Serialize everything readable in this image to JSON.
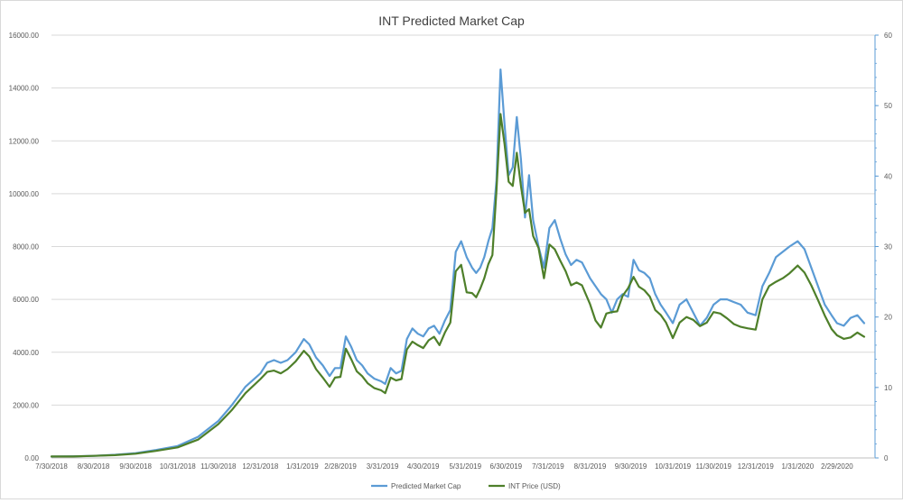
{
  "chart_data": {
    "type": "line",
    "title": "INT Predicted Market Cap",
    "x_tick_labels": [
      "7/30/2018",
      "8/30/2018",
      "9/30/2018",
      "10/31/2018",
      "11/30/2018",
      "12/31/2018",
      "1/31/2019",
      "2/28/2019",
      "3/31/2019",
      "4/30/2019",
      "5/31/2019",
      "6/30/2019",
      "7/31/2019",
      "8/31/2019",
      "9/30/2019",
      "10/31/2019",
      "11/30/2019",
      "12/31/2019",
      "1/31/2020",
      "2/29/2020"
    ],
    "y_left": {
      "min": 0,
      "max": 16000,
      "ticks": [
        "0.00",
        "2000.00",
        "4000.00",
        "6000.00",
        "8000.00",
        "10000.00",
        "12000.00",
        "14000.00",
        "16000.00"
      ]
    },
    "y_right": {
      "min": 0,
      "max": 60,
      "ticks": [
        "0",
        "10",
        "20",
        "30",
        "40",
        "50",
        "60"
      ]
    },
    "legend_position": "bottom",
    "grid": true,
    "series": [
      {
        "name": "Predicted Market Cap",
        "axis": "left",
        "color": "#5b9bd5",
        "x": [
          "2018-07-30",
          "2018-08-15",
          "2018-08-30",
          "2018-09-15",
          "2018-09-30",
          "2018-10-15",
          "2018-10-31",
          "2018-11-15",
          "2018-11-30",
          "2018-12-10",
          "2018-12-20",
          "2018-12-31",
          "2019-01-05",
          "2019-01-10",
          "2019-01-15",
          "2019-01-20",
          "2019-01-26",
          "2019-02-01",
          "2019-02-05",
          "2019-02-10",
          "2019-02-15",
          "2019-02-20",
          "2019-02-24",
          "2019-02-28",
          "2019-03-04",
          "2019-03-08",
          "2019-03-12",
          "2019-03-16",
          "2019-03-20",
          "2019-03-25",
          "2019-03-30",
          "2019-04-02",
          "2019-04-06",
          "2019-04-10",
          "2019-04-14",
          "2019-04-18",
          "2019-04-22",
          "2019-04-26",
          "2019-04-30",
          "2019-05-04",
          "2019-05-08",
          "2019-05-12",
          "2019-05-16",
          "2019-05-20",
          "2019-05-24",
          "2019-05-28",
          "2019-06-01",
          "2019-06-05",
          "2019-06-08",
          "2019-06-11",
          "2019-06-14",
          "2019-06-17",
          "2019-06-20",
          "2019-06-23",
          "2019-06-26",
          "2019-06-29",
          "2019-07-02",
          "2019-07-05",
          "2019-07-08",
          "2019-07-11",
          "2019-07-14",
          "2019-07-17",
          "2019-07-20",
          "2019-07-24",
          "2019-07-28",
          "2019-08-01",
          "2019-08-05",
          "2019-08-09",
          "2019-08-13",
          "2019-08-17",
          "2019-08-21",
          "2019-08-25",
          "2019-08-31",
          "2019-09-04",
          "2019-09-08",
          "2019-09-12",
          "2019-09-16",
          "2019-09-20",
          "2019-09-24",
          "2019-09-28",
          "2019-10-02",
          "2019-10-06",
          "2019-10-10",
          "2019-10-14",
          "2019-10-18",
          "2019-10-22",
          "2019-10-26",
          "2019-10-31",
          "2019-11-05",
          "2019-11-10",
          "2019-11-15",
          "2019-11-20",
          "2019-11-25",
          "2019-11-30",
          "2019-12-05",
          "2019-12-10",
          "2019-12-15",
          "2019-12-20",
          "2019-12-25",
          "2019-12-31",
          "2020-01-05",
          "2020-01-10",
          "2020-01-15",
          "2020-01-20",
          "2020-01-25",
          "2020-01-31",
          "2020-02-05",
          "2020-02-10",
          "2020-02-15",
          "2020-02-20",
          "2020-02-25",
          "2020-02-29",
          "2020-03-05",
          "2020-03-10",
          "2020-03-15",
          "2020-03-20"
        ],
        "y": [
          50,
          60,
          80,
          120,
          180,
          300,
          450,
          800,
          1400,
          2000,
          2700,
          3200,
          3600,
          3700,
          3600,
          3700,
          4000,
          4500,
          4300,
          3800,
          3500,
          3100,
          3400,
          3400,
          4600,
          4200,
          3700,
          3500,
          3200,
          3000,
          2900,
          2800,
          3400,
          3200,
          3300,
          4500,
          4900,
          4700,
          4600,
          4900,
          5000,
          4700,
          5200,
          5600,
          7800,
          8200,
          7600,
          7200,
          7000,
          7200,
          7600,
          8200,
          8700,
          10500,
          14700,
          12600,
          10700,
          11000,
          12900,
          11300,
          9100,
          10700,
          9000,
          8000,
          7200,
          8700,
          9000,
          8300,
          7700,
          7300,
          7500,
          7400,
          6800,
          6500,
          6200,
          6000,
          5500,
          6000,
          6200,
          6100,
          7500,
          7100,
          7000,
          6800,
          6200,
          5800,
          5500,
          5100,
          5800,
          6000,
          5500,
          5000,
          5300,
          5800,
          6000,
          6000,
          5900,
          5800,
          5500,
          5400,
          6500,
          7000,
          7600,
          7800,
          8000,
          8200,
          7900,
          7200,
          6500,
          5800,
          5400,
          5100,
          5000,
          5300,
          5400,
          5100
        ]
      },
      {
        "name": "INT Price (USD)",
        "axis": "right",
        "color": "#4e7f2a",
        "x": [
          "2018-07-30",
          "2018-08-15",
          "2018-08-30",
          "2018-09-15",
          "2018-09-30",
          "2018-10-15",
          "2018-10-31",
          "2018-11-15",
          "2018-11-30",
          "2018-12-10",
          "2018-12-20",
          "2018-12-31",
          "2019-01-05",
          "2019-01-10",
          "2019-01-15",
          "2019-01-20",
          "2019-01-26",
          "2019-02-01",
          "2019-02-05",
          "2019-02-10",
          "2019-02-15",
          "2019-02-20",
          "2019-02-24",
          "2019-02-28",
          "2019-03-04",
          "2019-03-08",
          "2019-03-12",
          "2019-03-16",
          "2019-03-20",
          "2019-03-25",
          "2019-03-30",
          "2019-04-02",
          "2019-04-06",
          "2019-04-10",
          "2019-04-14",
          "2019-04-18",
          "2019-04-22",
          "2019-04-26",
          "2019-04-30",
          "2019-05-04",
          "2019-05-08",
          "2019-05-12",
          "2019-05-16",
          "2019-05-20",
          "2019-05-24",
          "2019-05-28",
          "2019-06-01",
          "2019-06-05",
          "2019-06-08",
          "2019-06-11",
          "2019-06-14",
          "2019-06-17",
          "2019-06-20",
          "2019-06-23",
          "2019-06-26",
          "2019-06-29",
          "2019-07-02",
          "2019-07-05",
          "2019-07-08",
          "2019-07-11",
          "2019-07-14",
          "2019-07-17",
          "2019-07-20",
          "2019-07-24",
          "2019-07-28",
          "2019-08-01",
          "2019-08-05",
          "2019-08-09",
          "2019-08-13",
          "2019-08-17",
          "2019-08-21",
          "2019-08-25",
          "2019-08-31",
          "2019-09-04",
          "2019-09-08",
          "2019-09-12",
          "2019-09-16",
          "2019-09-20",
          "2019-09-24",
          "2019-09-28",
          "2019-10-02",
          "2019-10-06",
          "2019-10-10",
          "2019-10-14",
          "2019-10-18",
          "2019-10-22",
          "2019-10-26",
          "2019-10-31",
          "2019-11-05",
          "2019-11-10",
          "2019-11-15",
          "2019-11-20",
          "2019-11-25",
          "2019-11-30",
          "2019-12-05",
          "2019-12-10",
          "2019-12-15",
          "2019-12-20",
          "2019-12-25",
          "2019-12-31",
          "2020-01-05",
          "2020-01-10",
          "2020-01-15",
          "2020-01-20",
          "2020-01-25",
          "2020-01-31",
          "2020-02-05",
          "2020-02-10",
          "2020-02-15",
          "2020-02-20",
          "2020-02-25",
          "2020-02-29",
          "2020-03-05",
          "2020-03-10",
          "2020-03-15",
          "2020-03-20"
        ],
        "y": [
          0.2,
          0.2,
          0.3,
          0.4,
          0.6,
          1.0,
          1.5,
          2.6,
          4.8,
          6.8,
          9.2,
          11.2,
          12.2,
          12.4,
          12.0,
          12.6,
          13.7,
          15.2,
          14.4,
          12.6,
          11.4,
          10.1,
          11.4,
          11.5,
          15.5,
          14.0,
          12.3,
          11.6,
          10.6,
          9.9,
          9.6,
          9.2,
          11.4,
          11.0,
          11.2,
          15.4,
          16.5,
          16.0,
          15.6,
          16.7,
          17.2,
          16.0,
          17.8,
          19.2,
          26.5,
          27.4,
          23.5,
          23.4,
          22.8,
          24.0,
          25.5,
          27.5,
          28.8,
          38.0,
          48.8,
          44.5,
          39.2,
          38.6,
          43.3,
          38.6,
          34.8,
          35.3,
          31.5,
          29.8,
          25.5,
          30.3,
          29.6,
          28.0,
          26.5,
          24.5,
          24.9,
          24.5,
          21.8,
          19.5,
          18.5,
          20.5,
          20.7,
          20.8,
          23.0,
          24.1,
          25.7,
          24.3,
          23.8,
          22.9,
          21.0,
          20.3,
          19.2,
          17.0,
          19.2,
          20.0,
          19.6,
          18.7,
          19.2,
          20.7,
          20.5,
          19.8,
          19.0,
          18.6,
          18.4,
          18.2,
          22.5,
          24.4,
          25.0,
          25.5,
          26.2,
          27.3,
          26.3,
          24.5,
          22.4,
          20.2,
          18.3,
          17.4,
          16.9,
          17.1,
          17.8,
          17.2
        ]
      }
    ]
  }
}
